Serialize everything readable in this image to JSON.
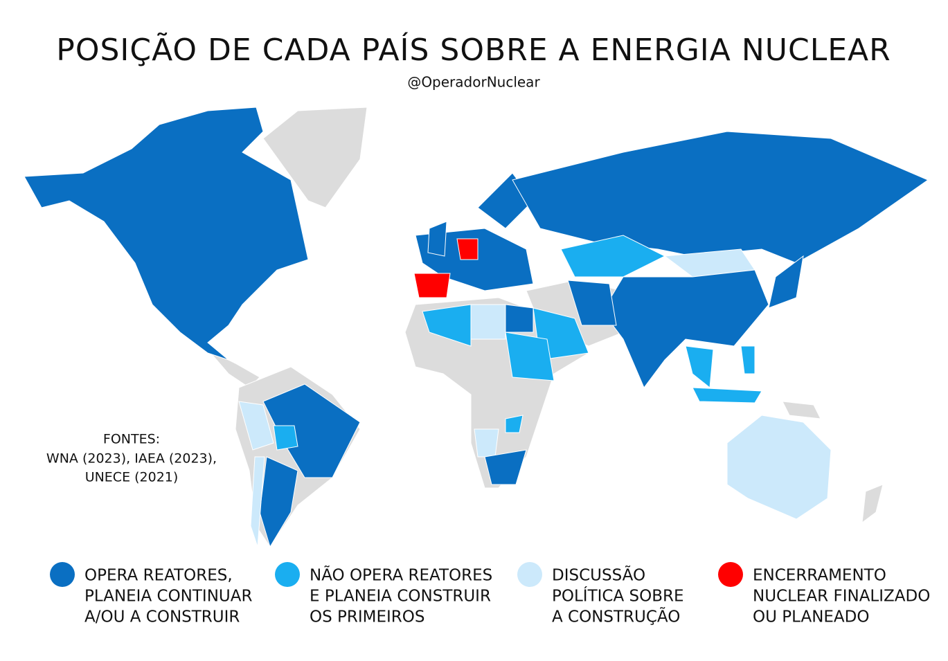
{
  "header": {
    "title": "POSIÇÃO DE CADA PAÍS SOBRE A ENERGIA NUCLEAR",
    "subtitle": "@OperadorNuclear"
  },
  "sources": {
    "heading": "FONTES:",
    "lines": [
      "WNA (2023), IAEA (2023),",
      "UNECE (2021)"
    ]
  },
  "legend": [
    {
      "color": "#0a6fc2",
      "lines": [
        "OPERA REATORES,",
        "PLANEIA CONTINUAR",
        "A/OU A CONSTRUIR"
      ]
    },
    {
      "color": "#1aaef0",
      "lines": [
        "NÃO OPERA REATORES",
        "E PLANEIA CONSTRUIR",
        "OS PRIMEIROS"
      ]
    },
    {
      "color": "#cce9fb",
      "lines": [
        "DISCUSSÃO",
        "POLÍTICA SOBRE",
        "A CONSTRUÇÃO"
      ]
    },
    {
      "color": "#ff0000",
      "lines": [
        "ENCERRAMENTO",
        "NUCLEAR FINALIZADO",
        "OU PLANEADO"
      ]
    }
  ]
}
